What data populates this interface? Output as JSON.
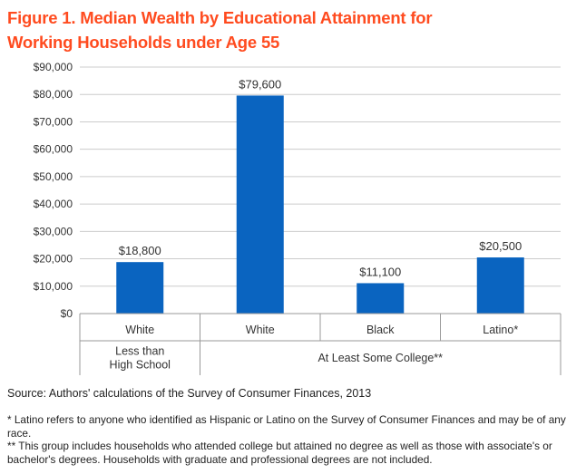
{
  "title_lines": [
    "Figure 1. Median Wealth by Educational Attainment for",
    "Working Households under Age 55"
  ],
  "colors": {
    "title": "#ff4b1f",
    "bar": "#0a64c0",
    "grid": "#cccccc",
    "axis": "#999999",
    "text": "#333333"
  },
  "chart_data": {
    "type": "bar",
    "categories": [
      "White",
      "White",
      "Black",
      "Latino*"
    ],
    "groups": [
      {
        "label_lines": [
          "Less than",
          "High School"
        ],
        "categories": [
          "White"
        ]
      },
      {
        "label_lines": [
          "At Least Some College**"
        ],
        "categories": [
          "White",
          "Black",
          "Latino*"
        ]
      }
    ],
    "values": [
      18800,
      79600,
      11100,
      20500
    ],
    "data_labels": [
      "$18,800",
      "$79,600",
      "$11,100",
      "$20,500"
    ],
    "y_ticks": [
      0,
      10000,
      20000,
      30000,
      40000,
      50000,
      60000,
      70000,
      80000,
      90000
    ],
    "y_tick_labels": [
      "$0",
      "$10,000",
      "$20,000",
      "$30,000",
      "$40,000",
      "$50,000",
      "$60,000",
      "$70,000",
      "$80,000",
      "$90,000"
    ],
    "ylim": [
      0,
      90000
    ],
    "grid": true,
    "legend": false
  },
  "source": "Source: Authors' calculations of the Survey of Consumer Finances, 2013",
  "notes": [
    "* Latino refers to anyone who identified as Hispanic or Latino on the Survey of Consumer Finances and may be of any race.",
    "** This group includes households who attended college but attained no degree as well as those with associate's or bachelor's degrees. Households with graduate and professional degrees are not included."
  ]
}
